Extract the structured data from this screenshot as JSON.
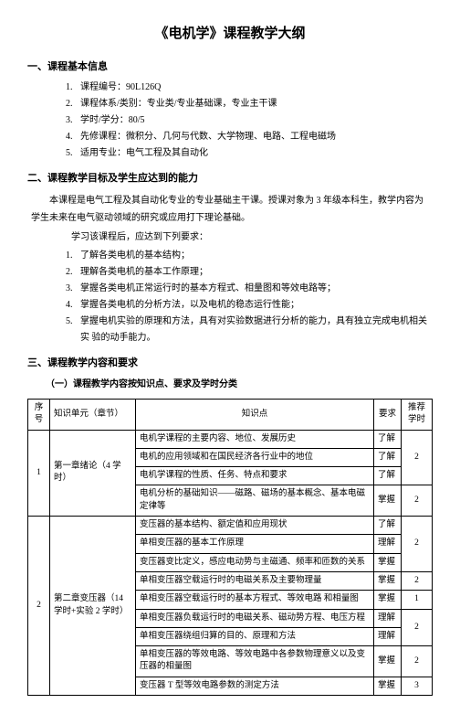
{
  "title": "《电机学》课程教学大纲",
  "sec1": {
    "heading": "一、课程基本信息",
    "items": [
      {
        "n": "1.",
        "t": "课程编号：90L126Q"
      },
      {
        "n": "2.",
        "t": "课程体系/类别：专业类/专业基础课，专业主干课"
      },
      {
        "n": "3.",
        "t": "学时/学分：80/5"
      },
      {
        "n": "4.",
        "t": "先修课程：微积分、几何与代数、大学物理、电路、工程电磁场"
      },
      {
        "n": "5.",
        "t": "适用专业：电气工程及其自动化"
      }
    ]
  },
  "sec2": {
    "heading": "二、课程教学目标及学生应达到的能力",
    "p1": "本课程是电气工程及其自动化专业的专业基础主干课。授课对象为 3 年级本科生，教学内容为 学生未来在电气驱动领域的研究或应用打下理论基础。",
    "p2": "学习该课程后，应达到下列要求：",
    "items": [
      {
        "n": "1.",
        "t": "了解各类电机的基本结构；"
      },
      {
        "n": "2.",
        "t": "理解各类电机的基本工作原理；"
      },
      {
        "n": "3.",
        "t": "掌握各类电机正常运行时的基本方程式、相量图和等效电路等；"
      },
      {
        "n": "4.",
        "t": "掌握各类电机的分析方法，以及电机的稳态运行性能；"
      },
      {
        "n": "5.",
        "t": "掌握电机实验的原理和方法，具有对实验数据进行分析的能力，具有独立完成电机相关实 验的动手能力。"
      }
    ]
  },
  "sec3": {
    "heading": "三、课程教学内容和要求",
    "sub": "（一）课程教学内容按知识点、要求及学时分类",
    "thead": {
      "seq": "序号",
      "unit": "知识单元（章节）",
      "point": "知识点",
      "req": "要求",
      "hours": "推荐学时"
    },
    "rows": [
      {
        "seq": "1",
        "unit": "第一章绪论（4 学时）",
        "points": [
          {
            "p": "电机学课程的主要内容、地位、发展历史",
            "r": "了解",
            "h": "2"
          },
          {
            "p": "电机的应用领域和在国民经济各行业中的地位",
            "r": "了解",
            "hspan": true
          },
          {
            "p": "电机学课程的性质、任务、特点和要求",
            "r": "了解",
            "hspan": true
          },
          {
            "p": "电机分析的基础知识——磁路、磁场的基本概念、基本电磁定律等",
            "r": "掌握",
            "h": "2"
          }
        ]
      },
      {
        "seq": "2",
        "unit": "第二章变压器（14 学时+实验 2 学时）",
        "points": [
          {
            "p": "变压器的基本结构、额定值和应用现状",
            "r": "了解",
            "h": "2"
          },
          {
            "p": "单相变压器的基本工作原理",
            "r": "理解",
            "hspan": true
          },
          {
            "p": "变压器变比定义，感应电动势与主磁通、频率和匝数的关系",
            "r": "掌握",
            "hspan": true
          },
          {
            "p": "单相变压器空载运行时的电磁关系及主要物理量",
            "r": "掌握",
            "h": "2"
          },
          {
            "p": "单相变压器空载运行时的基本方程式、等效电路 和相量图",
            "r": "掌握",
            "h": "1"
          },
          {
            "p": "单相变压器负载运行时的电磁关系、磁动势方程、电压方程",
            "r": "理解",
            "h": "2"
          },
          {
            "p": "单相变压器绕组归算的目的、原理和方法",
            "r": "理解",
            "hspan": true
          },
          {
            "p": "单相变压器的等效电路、等效电路中各参数物理意义以及变压器的相量图",
            "r": "掌握",
            "h": "2"
          },
          {
            "p": "变压器 T 型等效电路参数的测定方法",
            "r": "掌握",
            "h": "3"
          }
        ]
      }
    ]
  }
}
